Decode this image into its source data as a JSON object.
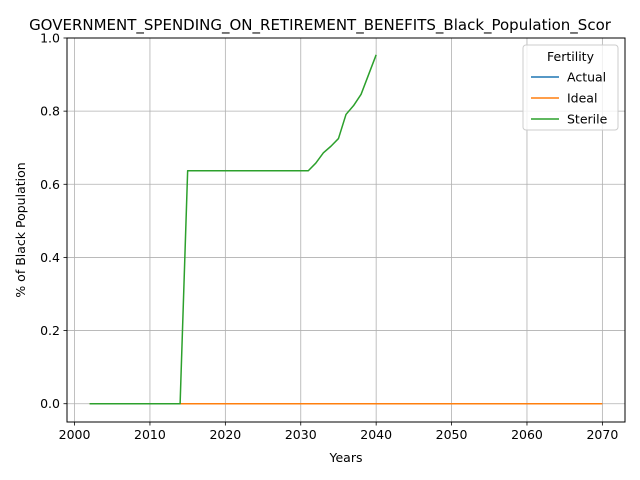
{
  "chart_data": {
    "type": "line",
    "title": "GOVERNMENT_SPENDING_ON_RETIREMENT_BENEFITS_Black_Population_Scor",
    "xlabel": "Years",
    "ylabel": "% of Black Population",
    "xlim": [
      1999,
      2073
    ],
    "ylim": [
      -0.05,
      1.0
    ],
    "xticks": [
      2000,
      2010,
      2020,
      2030,
      2040,
      2050,
      2060,
      2070
    ],
    "yticks": [
      0.0,
      0.2,
      0.4,
      0.6,
      0.8,
      1.0
    ],
    "xtick_labels": [
      "2000",
      "2010",
      "2020",
      "2030",
      "2040",
      "2050",
      "2060",
      "2070"
    ],
    "ytick_labels": [
      "0.0",
      "0.2",
      "0.4",
      "0.6",
      "0.8",
      "1.0"
    ],
    "grid": true,
    "legend": {
      "title": "Fertility",
      "placement": "top-right"
    },
    "series": [
      {
        "name": "Actual",
        "color": "#1f77b4",
        "x": [
          2002,
          2070
        ],
        "y": [
          0.0,
          0.0
        ]
      },
      {
        "name": "Ideal",
        "color": "#ff7f0e",
        "x": [
          2002,
          2070
        ],
        "y": [
          0.0,
          0.0
        ]
      },
      {
        "name": "Sterile",
        "color": "#2ca02c",
        "x": [
          2002,
          2014,
          2015,
          2031,
          2032,
          2033,
          2034,
          2035,
          2036,
          2037,
          2038,
          2039,
          2040
        ],
        "y": [
          0.0,
          0.0,
          0.637,
          0.637,
          0.658,
          0.686,
          0.704,
          0.725,
          0.791,
          0.815,
          0.846,
          0.9,
          0.954
        ]
      }
    ]
  }
}
